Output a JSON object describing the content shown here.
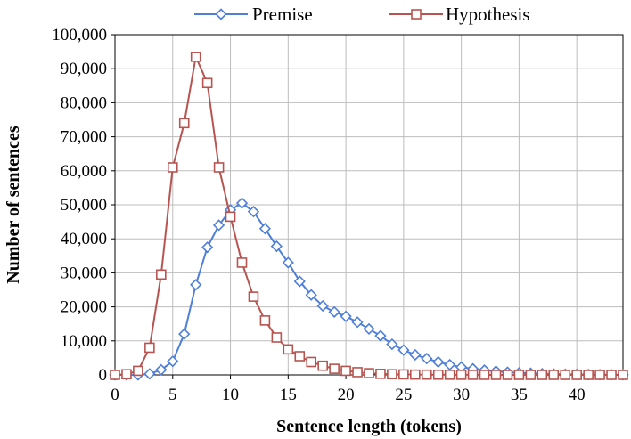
{
  "chart_data": {
    "type": "line",
    "title": "",
    "xlabel": "Sentence length (tokens)",
    "ylabel": "Number of sentences",
    "xlim": [
      0,
      44
    ],
    "ylim": [
      0,
      100000
    ],
    "x_ticks": [
      0,
      5,
      10,
      15,
      20,
      25,
      30,
      35,
      40
    ],
    "y_ticks": [
      0,
      10000,
      20000,
      30000,
      40000,
      50000,
      60000,
      70000,
      80000,
      90000,
      100000
    ],
    "x_tick_labels": [
      "0",
      "5",
      "10",
      "15",
      "20",
      "25",
      "30",
      "35",
      "40"
    ],
    "y_tick_labels": [
      "0",
      "10,000",
      "20,000",
      "30,000",
      "40,000",
      "50,000",
      "60,000",
      "70,000",
      "80,000",
      "90,000",
      "100,000"
    ],
    "grid": true,
    "legend_position": "top",
    "series": [
      {
        "name": "Premise",
        "color": "#4f7fd8",
        "marker": "diamond",
        "x": [
          0,
          1,
          2,
          3,
          4,
          5,
          6,
          7,
          8,
          9,
          10,
          11,
          12,
          13,
          14,
          15,
          16,
          17,
          18,
          19,
          20,
          21,
          22,
          23,
          24,
          25,
          26,
          27,
          28,
          29,
          30,
          31,
          32,
          33,
          34,
          35,
          36,
          37,
          38,
          39,
          40,
          41,
          42,
          43,
          44
        ],
        "values": [
          0,
          0,
          0,
          300,
          1500,
          4000,
          12000,
          26500,
          37500,
          44000,
          48500,
          50500,
          48000,
          43000,
          37800,
          33000,
          27500,
          23500,
          20300,
          18500,
          17200,
          15500,
          13500,
          11500,
          9000,
          7300,
          5900,
          4800,
          3800,
          3000,
          2300,
          1800,
          1400,
          1100,
          800,
          600,
          500,
          350,
          250,
          200,
          150,
          100,
          80,
          60,
          40
        ]
      },
      {
        "name": "Hypothesis",
        "color": "#b85450",
        "marker": "square",
        "x": [
          0,
          1,
          2,
          3,
          4,
          5,
          6,
          7,
          8,
          9,
          10,
          11,
          12,
          13,
          14,
          15,
          16,
          17,
          18,
          19,
          20,
          21,
          22,
          23,
          24,
          25,
          26,
          27,
          28,
          29,
          30,
          31,
          32,
          33,
          34,
          35,
          36,
          37,
          38,
          39,
          40,
          41,
          42,
          43,
          44
        ],
        "values": [
          0,
          200,
          1200,
          8000,
          29500,
          61000,
          74000,
          93500,
          85800,
          61000,
          46500,
          33000,
          23000,
          16000,
          11000,
          7500,
          5500,
          3800,
          2700,
          1800,
          1200,
          800,
          500,
          300,
          200,
          150,
          100,
          80,
          60,
          40,
          30,
          20,
          10,
          10,
          0,
          0,
          0,
          0,
          0,
          0,
          0,
          0,
          0,
          0,
          0
        ]
      }
    ]
  }
}
